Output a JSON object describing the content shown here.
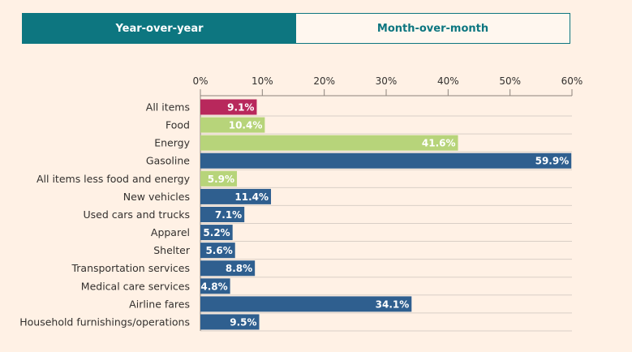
{
  "toggle": {
    "yoy_label": "Year-over-year",
    "mom_label": "Month-over-month"
  },
  "colors": {
    "background": "#fff1e5",
    "highlight": "#b8285c",
    "food_energy": "#b7d47a",
    "other": "#2f5f8f",
    "accent": "#0d7680"
  },
  "chart_data": {
    "type": "bar",
    "orientation": "horizontal",
    "title": "",
    "xlabel": "",
    "ylabel": "",
    "xlim": [
      0,
      60
    ],
    "ticks": [
      0,
      10,
      20,
      30,
      40,
      50,
      60
    ],
    "tick_labels": [
      "0%",
      "10%",
      "20%",
      "30%",
      "40%",
      "50%",
      "60%"
    ],
    "categories": [
      "All items",
      "Food",
      "Energy",
      "Gasoline",
      "All items less food and energy",
      "New vehicles",
      "Used cars and trucks",
      "Apparel",
      "Shelter",
      "Transportation services",
      "Medical care services",
      "Airline fares",
      "Household furnishings/operations"
    ],
    "values": [
      9.1,
      10.4,
      41.6,
      59.9,
      5.9,
      11.4,
      7.1,
      5.2,
      5.6,
      8.8,
      4.8,
      34.1,
      9.5
    ],
    "value_labels": [
      "9.1%",
      "10.4%",
      "41.6%",
      "59.9%",
      "5.9%",
      "11.4%",
      "7.1%",
      "5.2%",
      "5.6%",
      "8.8%",
      "4.8%",
      "34.1%",
      "9.5%"
    ],
    "groups": [
      "highlight",
      "food_energy",
      "food_energy",
      "other",
      "food_energy",
      "other",
      "other",
      "other",
      "other",
      "other",
      "other",
      "other",
      "other"
    ]
  }
}
